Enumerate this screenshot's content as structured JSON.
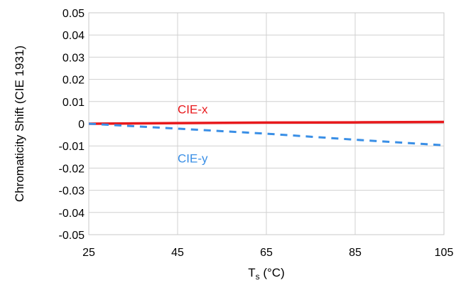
{
  "chart_data": {
    "type": "line",
    "title": "",
    "xlabel_main": "T",
    "xlabel_sub": "s",
    "xlabel_rest": " (°C)",
    "ylabel": "Chromaticity Shift (CIE 1931)",
    "xlim": [
      25,
      105
    ],
    "ylim": [
      -0.05,
      0.05
    ],
    "xticks": [
      25,
      45,
      65,
      85,
      105
    ],
    "xtick_labels": [
      "25",
      "45",
      "65",
      "85",
      "105"
    ],
    "yticks": [
      0.05,
      0.04,
      0.03,
      0.02,
      0.01,
      0,
      -0.01,
      -0.02,
      -0.03,
      -0.04,
      -0.05
    ],
    "ytick_labels": [
      "0.05",
      "0.04",
      "0.03",
      "0.02",
      "0.01",
      "0",
      "-0.01",
      "-0.02",
      "-0.03",
      "-0.04",
      "-0.05"
    ],
    "grid": true,
    "legend": "none",
    "series": [
      {
        "name": "CIE-x",
        "color": "#e8191c",
        "style": "solid",
        "x": [
          25,
          45,
          65,
          85,
          105
        ],
        "y": [
          0.0,
          0.0003,
          0.0005,
          0.0006,
          0.0008
        ],
        "annotation": {
          "text": "CIE-x",
          "x": 45,
          "y": 0.0065
        }
      },
      {
        "name": "CIE-y",
        "color": "#3a8fe6",
        "style": "dashed",
        "x": [
          25,
          45,
          65,
          85,
          105
        ],
        "y": [
          0.0,
          -0.0022,
          -0.0045,
          -0.0072,
          -0.0097
        ],
        "annotation": {
          "text": "CIE-y",
          "x": 45,
          "y": -0.0155
        }
      }
    ]
  }
}
